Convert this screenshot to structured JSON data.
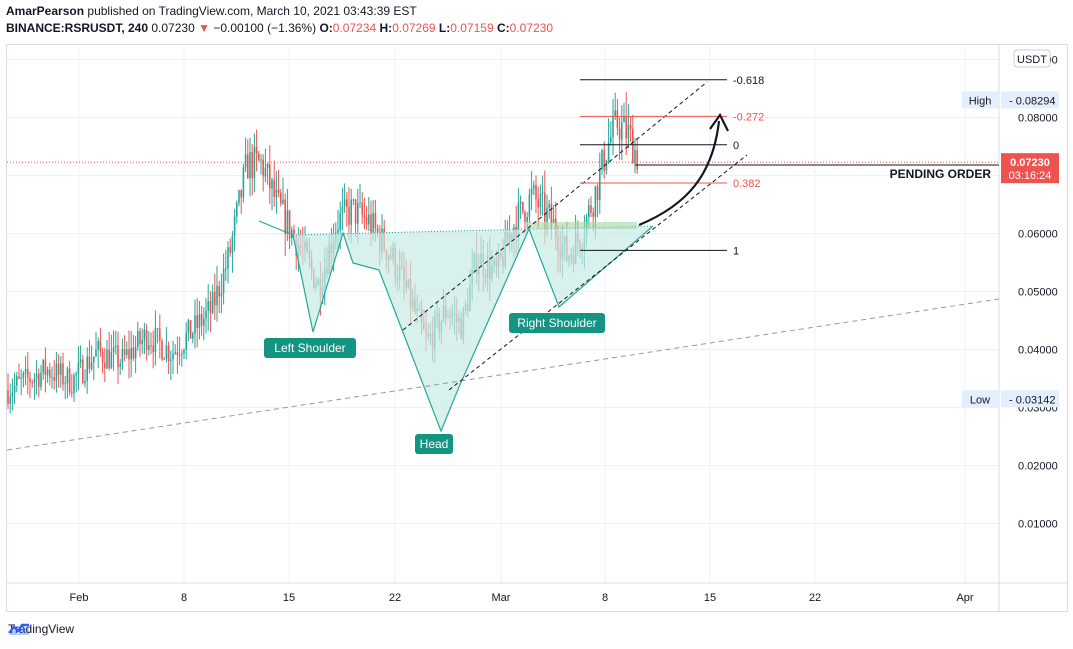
{
  "header": {
    "author": "AmarPearson",
    "published": "published on TradingView.com, March 10, 2021 03:43:39 EST",
    "symbol": "BINANCE:RSRUSDT, 240",
    "last": "0.07230",
    "change_arrow": "▼",
    "change": "−0.00100 (−1.36%)",
    "o_label": "O:",
    "o": "0.07234",
    "h_label": "H:",
    "h": "0.07269",
    "l_label": "L:",
    "l": "0.07159",
    "c_label": "C:",
    "c": "0.07230"
  },
  "footer": {
    "brand": "TradingView",
    "logo_icon": "tradingview-logo-icon"
  },
  "colors": {
    "up": "#26a69a",
    "down": "#ef5350",
    "pattern_fill": "#c8ebe5",
    "pattern_line": "#26a69a",
    "fib_red": "#ef5350",
    "grid": "#eef0f3"
  },
  "chart_data": {
    "type": "candlestick",
    "currency_badge": "USDT",
    "y_axis": {
      "min": 0.0,
      "max": 0.1,
      "ticks": [
        "0.09000",
        "0.08000",
        "0.07000",
        "0.06000",
        "0.05000",
        "0.04000",
        "0.03000",
        "0.02000",
        "0.01000"
      ]
    },
    "x_axis": {
      "ticks": [
        "Feb",
        "8",
        "15",
        "22",
        "Mar",
        "8",
        "15",
        "22",
        "Apr"
      ]
    },
    "markers": {
      "high": {
        "label": "High",
        "value": "0.08294"
      },
      "low": {
        "label": "Low",
        "value": "0.03142"
      },
      "last": {
        "value": "0.07230",
        "countdown": "03:16:24"
      }
    },
    "annotations": {
      "left_shoulder": "Left Shoulder",
      "head": "Head",
      "right_shoulder": "Right Shoulder",
      "pending_order": "PENDING ORDER"
    },
    "fib_levels": [
      {
        "label": "-0.618",
        "value": 0.0865
      },
      {
        "label": "-0.272",
        "value": 0.0802
      },
      {
        "label": "0",
        "value": 0.0753
      },
      {
        "label": "0.382",
        "value": 0.0687
      },
      {
        "label": "1",
        "value": 0.0571
      }
    ],
    "pending_order_price": 0.0718
  }
}
